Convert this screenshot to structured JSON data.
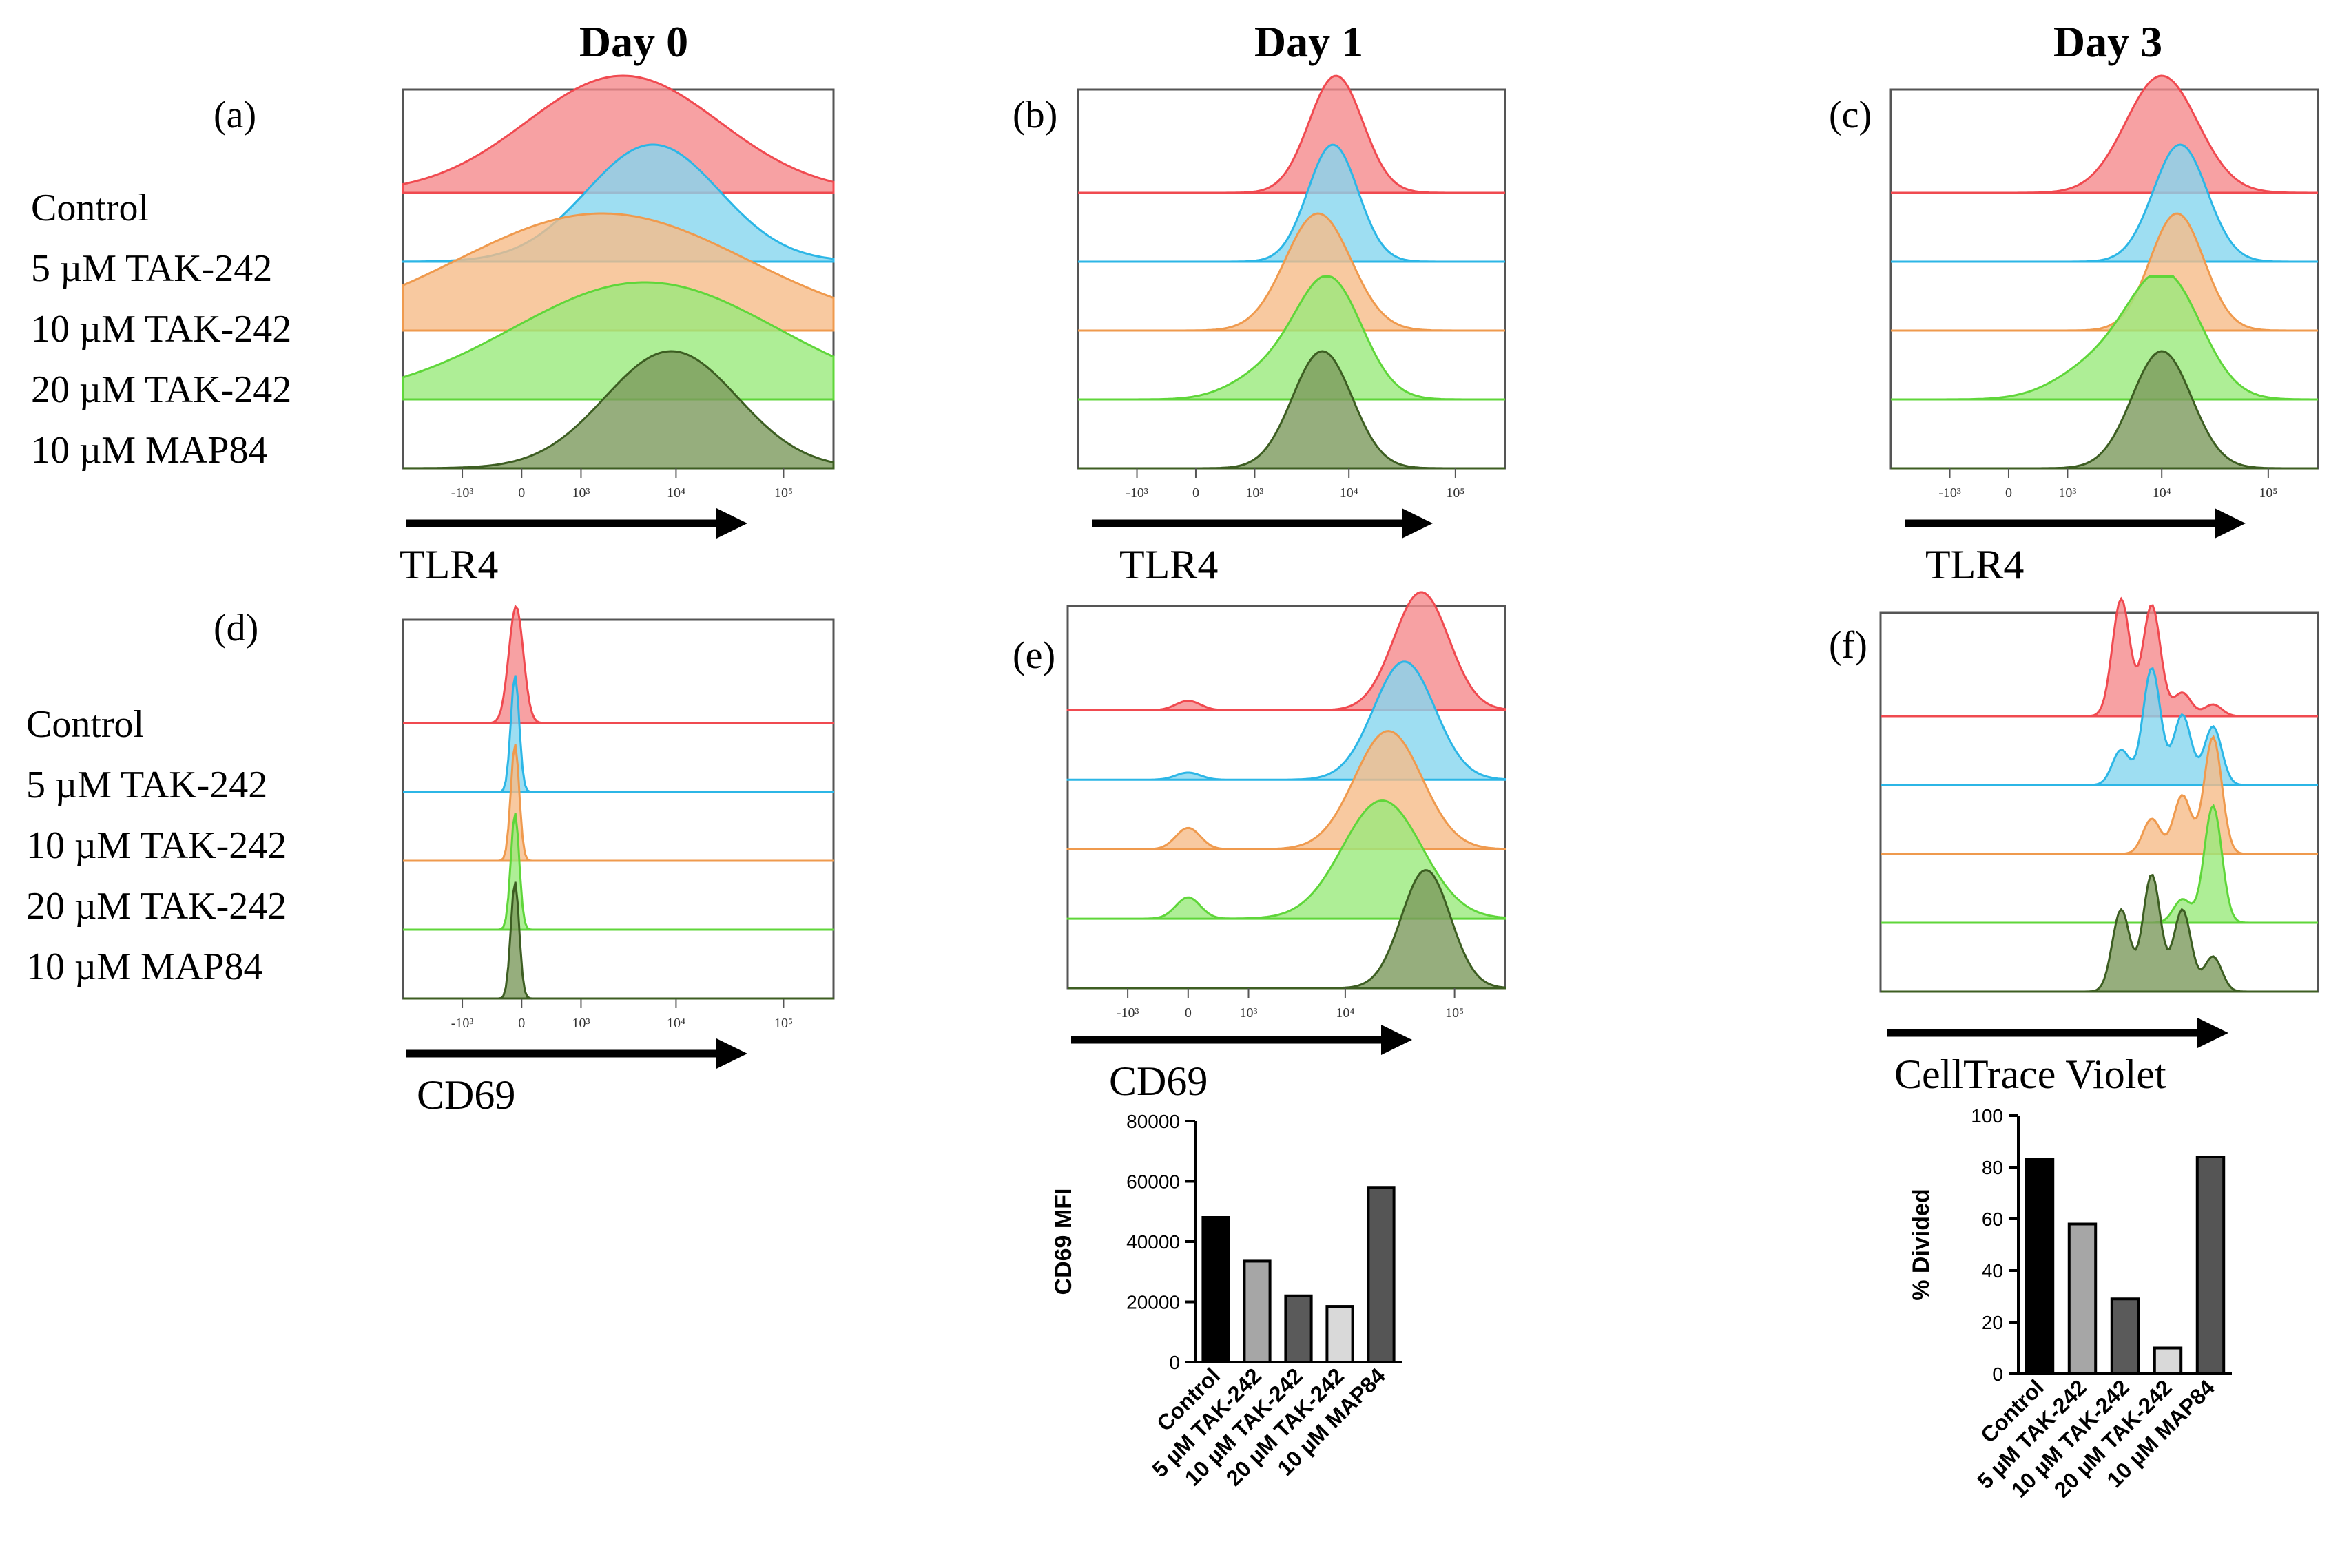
{
  "days": [
    "Day 0",
    "Day 1",
    "Day 3"
  ],
  "treatments": [
    "Control",
    "5 µM TAK-242",
    "10 µM TAK-242",
    "20 µM TAK-242",
    "10 µM MAP84"
  ],
  "colors": {
    "Control": {
      "fill": "#f58a8c",
      "line": "#f04a50"
    },
    "5 µM TAK-242": {
      "fill": "#86d6ef",
      "line": "#2cb6e6"
    },
    "10 µM TAK-242": {
      "fill": "#f6bb88",
      "line": "#ef9a4e"
    },
    "20 µM TAK-242": {
      "fill": "#9aea7c",
      "line": "#5fd63a"
    },
    "10 µM MAP84": {
      "fill": "#7c9a5c",
      "line": "#3d5e22"
    }
  },
  "chart_data": [
    {
      "id": "a",
      "label": "(a)",
      "type": "area",
      "day": "Day 0",
      "marker": "TLR4",
      "axis_label": "TLR4",
      "x_scale": "biexponential",
      "x_ticks": [
        "-10³",
        "0",
        "10³",
        "10⁴",
        "10⁵"
      ],
      "x_tick_values": [
        -1000,
        0,
        1000,
        10000,
        100000
      ],
      "show_legend": true,
      "series": [
        {
          "name": "Control",
          "peaks": [
            [
              3000,
              1.0,
              1.6
            ]
          ]
        },
        {
          "name": "5 µM TAK-242",
          "peaks": [
            [
              6000,
              1.0,
              1.1
            ]
          ]
        },
        {
          "name": "10 µM TAK-242",
          "peaks": [
            [
              1800,
              1.0,
              2.4
            ]
          ]
        },
        {
          "name": "20 µM TAK-242",
          "peaks": [
            [
              5000,
              1.0,
              2.2
            ]
          ]
        },
        {
          "name": "10 µM MAP84",
          "peaks": [
            [
              9000,
              1.0,
              1.1
            ]
          ]
        }
      ]
    },
    {
      "id": "b",
      "label": "(b)",
      "type": "area",
      "day": "Day 1",
      "marker": "TLR4",
      "axis_label": "TLR4",
      "x_scale": "biexponential",
      "x_ticks": [
        "-10³",
        "0",
        "10³",
        "10⁴",
        "10⁵"
      ],
      "x_tick_values": [
        -1000,
        0,
        1000,
        10000,
        100000
      ],
      "show_legend": false,
      "series": [
        {
          "name": "Control",
          "peaks": [
            [
              7500,
              1.0,
              0.45
            ]
          ]
        },
        {
          "name": "5 µM TAK-242",
          "peaks": [
            [
              7000,
              1.0,
              0.42
            ]
          ]
        },
        {
          "name": "10 µM TAK-242",
          "peaks": [
            [
              5000,
              1.0,
              0.55
            ]
          ]
        },
        {
          "name": "20 µM TAK-242",
          "peaks": [
            [
              6500,
              1.0,
              0.55
            ],
            [
              1500,
              0.22,
              0.6
            ]
          ]
        },
        {
          "name": "10 µM MAP84",
          "peaks": [
            [
              5500,
              1.0,
              0.5
            ]
          ]
        }
      ]
    },
    {
      "id": "c",
      "label": "(c)",
      "type": "area",
      "day": "Day 3",
      "marker": "TLR4",
      "axis_label": "TLR4",
      "x_scale": "biexponential",
      "x_ticks": [
        "-10³",
        "0",
        "10³",
        "10⁴",
        "10⁵"
      ],
      "x_tick_values": [
        -1000,
        0,
        1000,
        10000,
        100000
      ],
      "show_legend": false,
      "series": [
        {
          "name": "Control",
          "peaks": [
            [
              10000,
              1.0,
              0.6
            ]
          ]
        },
        {
          "name": "5 µM TAK-242",
          "peaks": [
            [
              15000,
              1.0,
              0.45
            ]
          ]
        },
        {
          "name": "10 µM TAK-242",
          "peaks": [
            [
              14000,
              1.0,
              0.45
            ]
          ]
        },
        {
          "name": "20 µM TAK-242",
          "peaks": [
            [
              11000,
              1.0,
              0.6
            ],
            [
              2500,
              0.3,
              0.7
            ]
          ]
        },
        {
          "name": "10 µM MAP84",
          "peaks": [
            [
              10000,
              1.0,
              0.5
            ]
          ]
        }
      ]
    },
    {
      "id": "d",
      "label": "(d)",
      "type": "area",
      "day": "Day 0",
      "marker": "CD69",
      "axis_label": "CD69",
      "x_scale": "biexponential",
      "x_ticks": [
        "-10³",
        "0",
        "10³",
        "10⁴",
        "10⁵"
      ],
      "x_tick_values": [
        -1000,
        0,
        1000,
        10000,
        100000
      ],
      "show_legend": true,
      "series": [
        {
          "name": "Control",
          "peaks": [
            [
              -50,
              1.0,
              0.12
            ]
          ]
        },
        {
          "name": "5 µM TAK-242",
          "peaks": [
            [
              -60,
              1.0,
              0.07
            ]
          ]
        },
        {
          "name": "10 µM TAK-242",
          "peaks": [
            [
              -60,
              1.0,
              0.07
            ]
          ]
        },
        {
          "name": "20 µM TAK-242",
          "peaks": [
            [
              -60,
              1.0,
              0.07
            ]
          ]
        },
        {
          "name": "10 µM MAP84",
          "peaks": [
            [
              -60,
              1.0,
              0.07
            ]
          ]
        }
      ]
    },
    {
      "id": "e",
      "label": "(e)",
      "type": "area",
      "day": "Day 1",
      "marker": "CD69",
      "axis_label": "CD69",
      "x_scale": "biexponential",
      "x_ticks": [
        "-10³",
        "0",
        "10³",
        "10⁴",
        "10⁵"
      ],
      "x_tick_values": [
        -1000,
        0,
        1000,
        10000,
        100000
      ],
      "show_legend": false,
      "series": [
        {
          "name": "Control",
          "peaks": [
            [
              50000,
              1.0,
              0.45
            ],
            [
              0,
              0.08,
              0.2
            ]
          ]
        },
        {
          "name": "5 µM TAK-242",
          "peaks": [
            [
              35000,
              1.0,
              0.5
            ],
            [
              0,
              0.06,
              0.2
            ]
          ]
        },
        {
          "name": "10 µM TAK-242",
          "peaks": [
            [
              25000,
              1.0,
              0.55
            ],
            [
              0,
              0.18,
              0.2
            ]
          ]
        },
        {
          "name": "20 µM TAK-242",
          "peaks": [
            [
              22000,
              1.0,
              0.65
            ],
            [
              0,
              0.18,
              0.2
            ]
          ]
        },
        {
          "name": "10 µM MAP84",
          "peaks": [
            [
              55000,
              1.0,
              0.4
            ]
          ]
        }
      ]
    },
    {
      "id": "f",
      "label": "(f)",
      "type": "area",
      "day": "Day 3",
      "marker": "CellTrace Violet",
      "axis_label": "CellTrace  Violet",
      "x_scale": "linear",
      "x_ticks": [],
      "x_tick_values": [],
      "show_legend": false,
      "series": [
        {
          "name": "Control",
          "peaks": [
            [
              0.55,
              1.0,
              0.02
            ],
            [
              0.62,
              0.95,
              0.02
            ],
            [
              0.69,
              0.2,
              0.02
            ],
            [
              0.76,
              0.1,
              0.02
            ]
          ]
        },
        {
          "name": "5 µM TAK-242",
          "peaks": [
            [
              0.55,
              0.3,
              0.02
            ],
            [
              0.62,
              1.0,
              0.02
            ],
            [
              0.69,
              0.6,
              0.02
            ],
            [
              0.76,
              0.5,
              0.02
            ]
          ]
        },
        {
          "name": "10 µM TAK-242",
          "peaks": [
            [
              0.62,
              0.3,
              0.02
            ],
            [
              0.69,
              0.5,
              0.02
            ],
            [
              0.76,
              1.0,
              0.02
            ]
          ]
        },
        {
          "name": "20 µM TAK-242",
          "peaks": [
            [
              0.69,
              0.2,
              0.02
            ],
            [
              0.76,
              1.0,
              0.02
            ]
          ]
        },
        {
          "name": "10 µM MAP84",
          "peaks": [
            [
              0.55,
              0.7,
              0.02
            ],
            [
              0.62,
              1.0,
              0.02
            ],
            [
              0.69,
              0.7,
              0.02
            ],
            [
              0.76,
              0.3,
              0.02
            ]
          ]
        }
      ]
    },
    {
      "id": "e-bar",
      "type": "bar",
      "day": "Day 1",
      "ylabel": "CD69 MFI",
      "categories": [
        "Control",
        "5 µM TAK-242",
        "10 µM TAK-242",
        "20 µM TAK-242",
        "10 µM MAP84"
      ],
      "values": [
        48000,
        33500,
        22000,
        18500,
        58000
      ],
      "ylim": [
        0,
        80000
      ],
      "y_ticks": [
        0,
        20000,
        40000,
        60000,
        80000
      ],
      "bar_colors": [
        "#000000",
        "#a6a6a6",
        "#5a5a5a",
        "#d9d9d9",
        "#555555"
      ]
    },
    {
      "id": "f-bar",
      "type": "bar",
      "day": "Day 3",
      "ylabel": "% Divided",
      "categories": [
        "Control",
        "5 µM TAK-242",
        "10 µM TAK-242",
        "20 µM TAK-242",
        "10 µM MAP84"
      ],
      "values": [
        83,
        58,
        29,
        10,
        84
      ],
      "ylim": [
        0,
        100
      ],
      "y_ticks": [
        0,
        20,
        40,
        60,
        80,
        100
      ],
      "bar_colors": [
        "#000000",
        "#a6a6a6",
        "#5a5a5a",
        "#d9d9d9",
        "#555555"
      ]
    }
  ]
}
